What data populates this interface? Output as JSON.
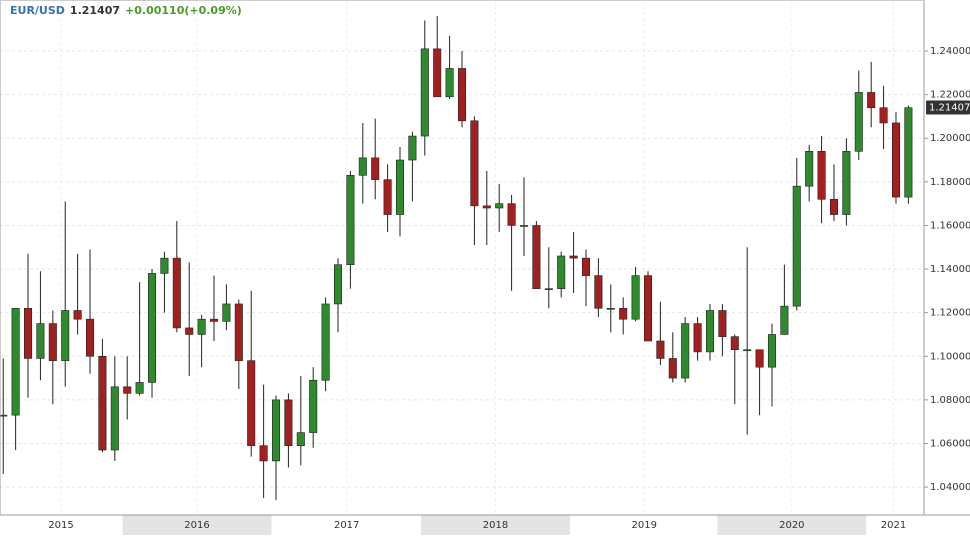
{
  "chart_data": {
    "type": "candlestick",
    "symbol": "EUR/USD",
    "last": 1.21407,
    "change": {
      "value": 0.0011,
      "label": "+0.00110"
    },
    "change_pct": {
      "value": 0.09,
      "label": "(+0.09%)"
    },
    "up_color": "#2d8a2d",
    "down_color": "#a32020",
    "grid": true,
    "categories": [
      null,
      null,
      null,
      null,
      null,
      null,
      null,
      null,
      null,
      null,
      null,
      null,
      null,
      null,
      null,
      null,
      null,
      null,
      null,
      null,
      null,
      null,
      null,
      null,
      null,
      null,
      null,
      null,
      null,
      null,
      null,
      null,
      null,
      null,
      null,
      null,
      null,
      null,
      null,
      null,
      null,
      null,
      null,
      null,
      null,
      null,
      null,
      null,
      null,
      null,
      null,
      null,
      null,
      null,
      null,
      null,
      null,
      null,
      null,
      null,
      null,
      null,
      null,
      null,
      null,
      null,
      null,
      null,
      null,
      null,
      null,
      null,
      null,
      null
    ],
    "open": [
      1.073,
      1.073,
      1.122,
      1.099,
      1.115,
      1.098,
      1.121,
      1.117,
      1.1,
      1.057,
      1.086,
      1.083,
      1.088,
      1.138,
      1.145,
      1.113,
      1.11,
      1.117,
      1.116,
      1.124,
      1.098,
      1.059,
      1.052,
      1.08,
      1.059,
      1.065,
      1.089,
      1.124,
      1.142,
      1.183,
      1.191,
      1.181,
      1.165,
      1.19,
      1.201,
      1.241,
      1.219,
      1.232,
      1.208,
      1.169,
      1.168,
      1.17,
      1.16,
      1.16,
      1.131,
      1.131,
      1.146,
      1.145,
      1.137,
      1.122,
      1.122,
      1.117,
      1.137,
      1.107,
      1.099,
      1.09,
      1.115,
      1.102,
      1.121,
      1.109,
      1.103,
      1.103,
      1.095,
      1.11,
      1.123,
      1.178,
      1.194,
      1.172,
      1.165,
      1.194,
      1.221,
      1.214,
      1.207,
      1.173
    ],
    "high": [
      1.099,
      1.122,
      1.147,
      1.139,
      1.121,
      1.171,
      1.147,
      1.149,
      1.108,
      1.1,
      1.1,
      1.134,
      1.14,
      1.148,
      1.162,
      1.143,
      1.119,
      1.137,
      1.133,
      1.126,
      1.13,
      1.087,
      1.082,
      1.083,
      1.091,
      1.095,
      1.127,
      1.145,
      1.185,
      1.207,
      1.209,
      1.188,
      1.196,
      1.203,
      1.254,
      1.256,
      1.247,
      1.24,
      1.21,
      1.185,
      1.179,
      1.174,
      1.182,
      1.162,
      1.15,
      1.148,
      1.157,
      1.149,
      1.145,
      1.133,
      1.127,
      1.141,
      1.139,
      1.125,
      1.111,
      1.118,
      1.118,
      1.124,
      1.124,
      1.11,
      1.15,
      1.103,
      1.115,
      1.142,
      1.191,
      1.197,
      1.201,
      1.188,
      1.2,
      1.231,
      1.235,
      1.224,
      1.212,
      1.215
    ],
    "low": [
      1.046,
      1.057,
      1.081,
      1.089,
      1.078,
      1.086,
      1.11,
      1.092,
      1.056,
      1.052,
      1.071,
      1.082,
      1.081,
      1.12,
      1.111,
      1.091,
      1.095,
      1.107,
      1.112,
      1.085,
      1.054,
      1.035,
      1.034,
      1.049,
      1.05,
      1.058,
      1.084,
      1.111,
      1.131,
      1.17,
      1.172,
      1.157,
      1.155,
      1.171,
      1.192,
      1.22,
      1.218,
      1.205,
      1.151,
      1.151,
      1.157,
      1.13,
      1.146,
      1.132,
      1.122,
      1.127,
      1.129,
      1.123,
      1.118,
      1.111,
      1.11,
      1.116,
      1.107,
      1.096,
      1.088,
      1.088,
      1.098,
      1.098,
      1.1,
      1.078,
      1.064,
      1.073,
      1.077,
      1.11,
      1.121,
      1.171,
      1.161,
      1.162,
      1.16,
      1.19,
      1.205,
      1.195,
      1.17,
      1.17
    ],
    "close": [
      1.073,
      1.122,
      1.099,
      1.115,
      1.098,
      1.121,
      1.117,
      1.1,
      1.057,
      1.086,
      1.083,
      1.088,
      1.138,
      1.145,
      1.113,
      1.11,
      1.117,
      1.116,
      1.124,
      1.098,
      1.059,
      1.052,
      1.08,
      1.059,
      1.065,
      1.089,
      1.124,
      1.142,
      1.183,
      1.191,
      1.181,
      1.165,
      1.19,
      1.201,
      1.241,
      1.219,
      1.232,
      1.208,
      1.169,
      1.168,
      1.17,
      1.16,
      1.16,
      1.131,
      1.131,
      1.146,
      1.145,
      1.137,
      1.122,
      1.122,
      1.117,
      1.137,
      1.107,
      1.099,
      1.09,
      1.115,
      1.102,
      1.121,
      1.109,
      1.103,
      1.103,
      1.095,
      1.11,
      1.123,
      1.178,
      1.194,
      1.172,
      1.165,
      1.194,
      1.221,
      1.214,
      1.207,
      1.173,
      1.214
    ],
    "xlim": [
      -0.26,
      74.26
    ],
    "xticks": [
      {
        "value": 4.66,
        "label": "2015"
      },
      {
        "value": 15.63,
        "label": "2016"
      },
      {
        "value": 27.7,
        "label": "2017"
      },
      {
        "value": 39.7,
        "label": "2018"
      },
      {
        "value": 51.7,
        "label": "2019"
      },
      {
        "value": 63.6,
        "label": "2020"
      },
      {
        "value": 71.8,
        "label": "2021"
      }
    ],
    "ylim": [
      1.0272,
      1.2634
    ],
    "yticks": [
      {
        "value": 1.04,
        "label": "1.04000"
      },
      {
        "value": 1.06,
        "label": "1.06000"
      },
      {
        "value": 1.08,
        "label": "1.08000"
      },
      {
        "value": 1.1,
        "label": "1.10000"
      },
      {
        "value": 1.12,
        "label": "1.12000"
      },
      {
        "value": 1.14,
        "label": "1.14000"
      },
      {
        "value": 1.16,
        "label": "1.16000"
      },
      {
        "value": 1.18,
        "label": "1.18000"
      },
      {
        "value": 1.2,
        "label": "1.20000"
      },
      {
        "value": 1.22,
        "label": "1.22000"
      },
      {
        "value": 1.24,
        "label": "1.24000"
      }
    ]
  }
}
